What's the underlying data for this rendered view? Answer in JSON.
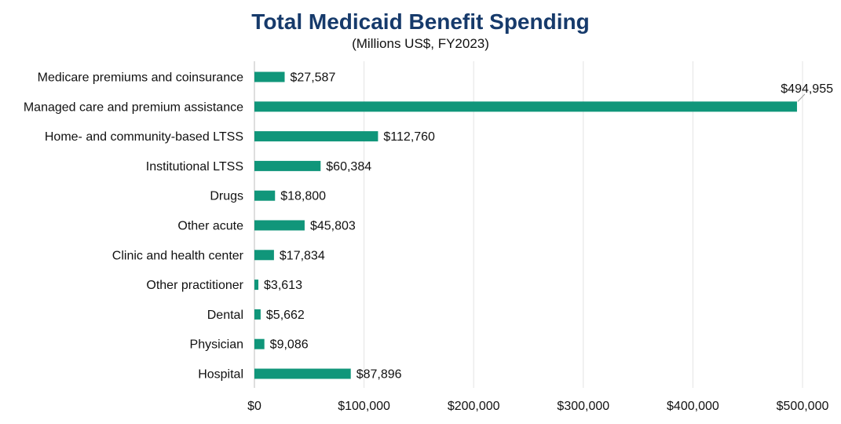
{
  "chart_data": {
    "type": "bar",
    "orientation": "horizontal",
    "title": "Total Medicaid Benefit Spending",
    "subtitle": "(Millions US$, FY2023)",
    "xlabel": "",
    "ylabel": "",
    "categories": [
      "Medicare premiums and coinsurance",
      "Managed care and premium assistance",
      "Home- and community-based LTSS",
      "Institutional LTSS",
      "Drugs",
      "Other acute",
      "Clinic and health center",
      "Other practitioner",
      "Dental",
      "Physician",
      "Hospital"
    ],
    "values": [
      27587,
      494955,
      112760,
      60384,
      18800,
      45803,
      17834,
      3613,
      5662,
      9086,
      87896
    ],
    "value_labels": [
      "$27,587",
      "$494,955",
      "$112,760",
      "$60,384",
      "$18,800",
      "$45,803",
      "$17,834",
      "$3,613",
      "$5,662",
      "$9,086",
      "$87,896"
    ],
    "xlim": [
      0,
      500000
    ],
    "xticks": [
      0,
      100000,
      200000,
      300000,
      400000,
      500000
    ],
    "xtick_labels": [
      "$0",
      "$100,000",
      "$200,000",
      "$300,000",
      "$400,000",
      "$500,000"
    ],
    "grid": "vertical",
    "legend": "none",
    "bar_color": "#10967a",
    "title_color": "#163a6b"
  }
}
